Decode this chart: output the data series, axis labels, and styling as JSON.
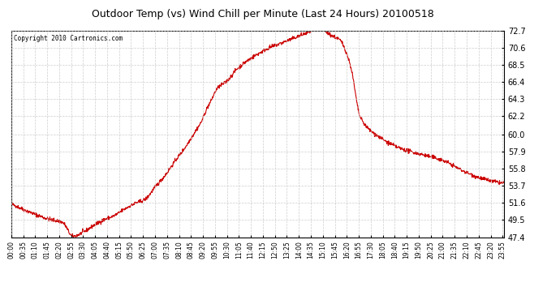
{
  "title": "Outdoor Temp (vs) Wind Chill per Minute (Last 24 Hours) 20100518",
  "copyright": "Copyright 2010 Cartronics.com",
  "bg_color": "#ffffff",
  "plot_bg_color": "#ffffff",
  "line_color": "#cc0000",
  "line_width": 0.8,
  "yticks": [
    47.4,
    49.5,
    51.6,
    53.7,
    55.8,
    57.9,
    60.0,
    62.2,
    64.3,
    66.4,
    68.5,
    70.6,
    72.7
  ],
  "ymin": 47.4,
  "ymax": 72.7,
  "grid_color": "#c8c8c8",
  "grid_linestyle": "--",
  "xtick_labels": [
    "00:00",
    "00:35",
    "01:10",
    "01:45",
    "02:20",
    "02:55",
    "03:30",
    "04:05",
    "04:40",
    "05:15",
    "05:50",
    "06:25",
    "07:00",
    "07:35",
    "08:10",
    "08:45",
    "09:20",
    "09:55",
    "10:30",
    "11:05",
    "11:40",
    "12:15",
    "12:50",
    "13:25",
    "14:00",
    "14:35",
    "15:10",
    "15:45",
    "16:20",
    "16:55",
    "17:30",
    "18:05",
    "18:40",
    "19:15",
    "19:50",
    "20:25",
    "21:00",
    "21:35",
    "22:10",
    "22:45",
    "23:20",
    "23:55"
  ],
  "ctrl_x": [
    0,
    35,
    70,
    110,
    150,
    180,
    210,
    240,
    270,
    300,
    330,
    360,
    390,
    420,
    450,
    480,
    510,
    525,
    540,
    555,
    570,
    585,
    600,
    630,
    660,
    690,
    720,
    750,
    780,
    810,
    840,
    870,
    900,
    910,
    930,
    960,
    990,
    1020,
    1080,
    1140,
    1200,
    1260,
    1320,
    1380,
    1439
  ],
  "ctrl_y": [
    51.5,
    50.8,
    50.2,
    49.6,
    49.2,
    47.5,
    48.0,
    48.8,
    49.5,
    50.0,
    50.8,
    51.5,
    52.0,
    53.5,
    55.0,
    56.8,
    58.5,
    59.5,
    60.5,
    61.5,
    63.0,
    64.2,
    65.5,
    66.5,
    68.0,
    69.0,
    69.8,
    70.5,
    71.0,
    71.5,
    72.0,
    72.5,
    73.0,
    72.8,
    72.2,
    71.5,
    68.5,
    62.0,
    59.5,
    58.2,
    57.5,
    56.8,
    55.5,
    54.5,
    54.0
  ]
}
